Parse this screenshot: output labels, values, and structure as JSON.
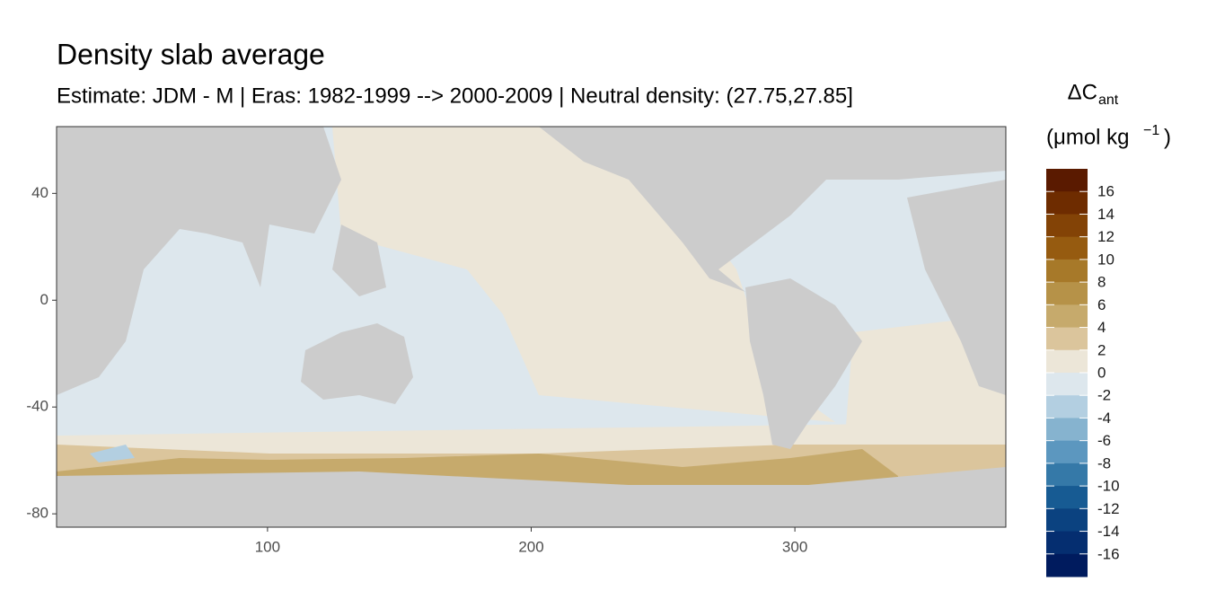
{
  "chart_data": {
    "type": "map",
    "title": "Density slab average",
    "subtitle": "Estimate: JDM - M | Eras: 1982-1999 --> 2000-2009 | Neutral density: (27.75,27.85]",
    "xlim": [
      20,
      380
    ],
    "xticks": [
      100,
      200,
      300
    ],
    "ylim": [
      -85,
      65
    ],
    "yticks": [
      40,
      0,
      -40,
      -80
    ],
    "legend_title": {
      "symbol": "ΔC",
      "subscript": "ant",
      "unit": "(μmol kg",
      "superscript": "−1",
      "close": ")"
    },
    "colorbar": {
      "breaks": [
        18,
        16,
        14,
        12,
        10,
        8,
        6,
        4,
        2,
        0,
        -2,
        -4,
        -6,
        -8,
        -10,
        -12,
        -14,
        -16,
        -18
      ],
      "ticks": [
        16,
        14,
        12,
        10,
        8,
        6,
        4,
        2,
        0,
        -2,
        -4,
        -6,
        -8,
        -10,
        -12,
        -14,
        -16
      ],
      "colors": [
        "#5a1a00",
        "#6e2c00",
        "#834306",
        "#965b10",
        "#a77929",
        "#b69248",
        "#c6aa6c",
        "#dbc59c",
        "#ece6d8",
        "#dde7ed",
        "#b3cfe1",
        "#86b3cf",
        "#5c97bf",
        "#3579a8",
        "#175b93",
        "#0b4280",
        "#052e70",
        "#001b5e"
      ]
    }
  }
}
